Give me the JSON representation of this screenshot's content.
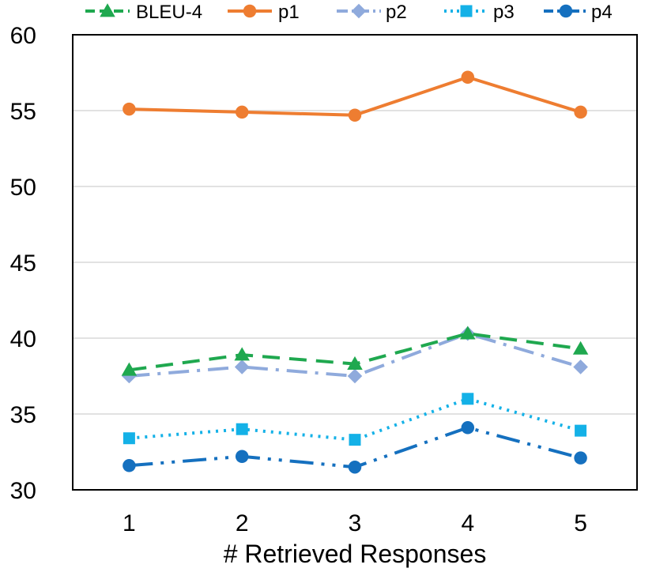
{
  "chart_data": {
    "type": "line",
    "title": "",
    "xlabel": "# Retrieved Responses",
    "ylabel": "",
    "x": [
      1,
      2,
      3,
      4,
      5
    ],
    "ylim": [
      30,
      60
    ],
    "yticks": [
      30,
      35,
      40,
      45,
      50,
      55,
      60
    ],
    "grid": "horizontal",
    "legend_position": "top",
    "series": [
      {
        "name": "BLEU-4",
        "values": [
          37.9,
          38.9,
          38.3,
          40.3,
          39.3
        ],
        "color": "#1fa84f",
        "dash": "dashed",
        "marker": "triangle"
      },
      {
        "name": "p1",
        "values": [
          55.1,
          54.9,
          54.7,
          57.2,
          54.9
        ],
        "color": "#ee7d31",
        "dash": "solid",
        "marker": "circle"
      },
      {
        "name": "p2",
        "values": [
          37.5,
          38.1,
          37.5,
          40.3,
          38.1
        ],
        "color": "#8faadc",
        "dash": "dashdot",
        "marker": "diamond"
      },
      {
        "name": "p3",
        "values": [
          33.4,
          34.0,
          33.3,
          36.0,
          33.9
        ],
        "color": "#14b1e7",
        "dash": "dotted",
        "marker": "square"
      },
      {
        "name": "p4",
        "values": [
          31.6,
          32.2,
          31.5,
          34.1,
          32.1
        ],
        "color": "#1570bf",
        "dash": "longdashdotdot",
        "marker": "circle"
      }
    ]
  }
}
